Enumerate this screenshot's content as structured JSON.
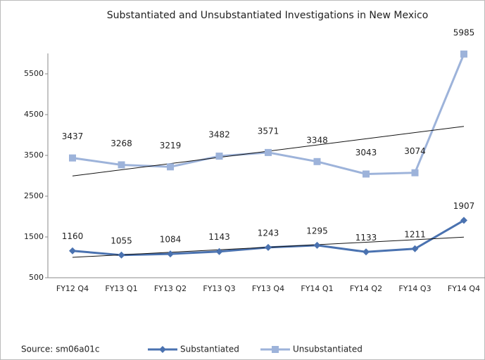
{
  "chart_data": {
    "type": "line",
    "title": "Substantiated and Unsubstantiated Investigations in New Mexico",
    "source": "Source:  sm06a01c",
    "categories": [
      "FY12 Q4",
      "FY13 Q1",
      "FY13 Q2",
      "FY13 Q3",
      "FY13 Q4",
      "FY14 Q1",
      "FY14 Q2",
      "FY14 Q3",
      "FY14 Q4"
    ],
    "series": [
      {
        "name": "Substantiated",
        "color": "#4a72b0",
        "marker": "diamond",
        "values": [
          1160,
          1055,
          1084,
          1143,
          1243,
          1295,
          1133,
          1211,
          1907
        ]
      },
      {
        "name": "Unsubstantiated",
        "color": "#9db3da",
        "marker": "square",
        "values": [
          3437,
          3268,
          3219,
          3482,
          3571,
          3348,
          3043,
          3074,
          5985
        ]
      }
    ],
    "ylim": [
      500,
      6000
    ],
    "yticks": [
      500,
      1500,
      2500,
      3500,
      4500,
      5500
    ],
    "trendline": true,
    "legend": "bottom"
  }
}
